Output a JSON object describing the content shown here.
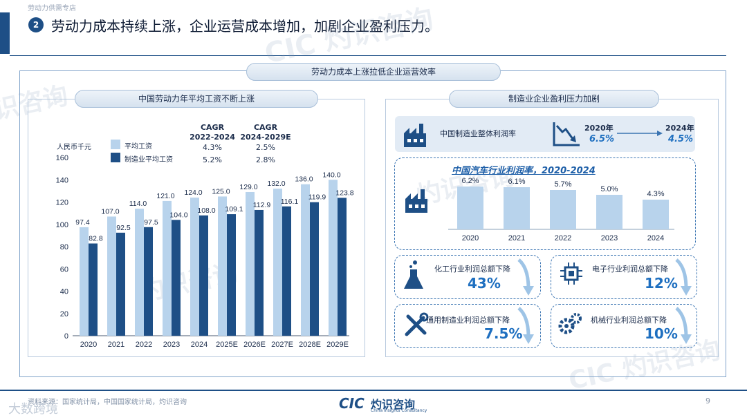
{
  "header": {
    "category": "劳动力供需专店",
    "badge_number": "2",
    "headline": "劳动力成本持续上涨，企业运营成本增加，加剧企业盈利压力。"
  },
  "main_title": "劳动力成本上涨拉低企业运营效率",
  "left": {
    "title": "中国劳动力年平均工资不断上涨",
    "unit": "人民币千元",
    "legend": [
      "平均工资",
      "制造业平均工资"
    ],
    "cagr_headers": [
      "CAGR\n2022-2024",
      "CAGR\n2024-2029E"
    ],
    "cagr_rows": [
      [
        "4.3%",
        "2.5%"
      ],
      [
        "5.2%",
        "2.8%"
      ]
    ]
  },
  "right": {
    "title": "制造业企业盈利压力加剧",
    "profit_card": {
      "label": "中国制造业整体利润率",
      "year_start": "2020年",
      "year_end": "2024年",
      "value_start": "6.5%",
      "value_end": "4.5%"
    },
    "auto_title": "中国汽车行业利润率，2020-2024",
    "industry_cards": [
      {
        "label": "化工行业利润总额下降",
        "value": "43%",
        "icon": "flask-icon"
      },
      {
        "label": "电子行业利润总额下降",
        "value": "12%",
        "icon": "chip-icon"
      },
      {
        "label": "通用制造业利润总额下降",
        "value": "7.5%",
        "icon": "tools-icon"
      },
      {
        "label": "机械行业利润总额下降",
        "value": "10%",
        "icon": "gears-icon"
      }
    ]
  },
  "footer": {
    "source": "资料来源：国家统计局，中国国家统计局，灼识咨询",
    "logo_mark": "CIC",
    "logo_cn": "灼识咨询",
    "logo_en": "China Insights Consultancy",
    "page": "9",
    "watermark": "大数跨境"
  },
  "colors": {
    "dark_blue": "#1e4f86",
    "light_blue": "#b7d4ee",
    "bar_blue": "#b8d3ec",
    "accent": "#1e6fc0"
  },
  "chart_data": [
    {
      "type": "bar",
      "title": "中国劳动力年平均工资不断上涨",
      "ylabel": "人民币千元",
      "categories": [
        "2020",
        "2021",
        "2022",
        "2023",
        "2024",
        "2025E",
        "2026E",
        "2027E",
        "2028E",
        "2029E"
      ],
      "series": [
        {
          "name": "平均工资",
          "values": [
            97.4,
            107.0,
            114.0,
            121.0,
            124.0,
            125.0,
            129.0,
            132.0,
            136.0,
            140.0
          ],
          "labels": [
            "97.4",
            "107.0",
            "114.0",
            "121.0",
            "124.0",
            "125.0",
            "129.0",
            "132.0",
            "136.0",
            "140.0"
          ]
        },
        {
          "name": "制造业平均工资",
          "values": [
            82.8,
            92.5,
            97.5,
            104.0,
            108.0,
            109.1,
            112.9,
            116.1,
            119.9,
            123.8
          ],
          "labels": [
            "82.8",
            "92.5",
            "97.5",
            "104.0",
            "108.0",
            "109.1",
            "112.9",
            "116.1",
            "119.9",
            "123.8"
          ]
        }
      ],
      "ylim": [
        0,
        160
      ],
      "yticks": [
        "0",
        "20",
        "40",
        "60",
        "80",
        "100",
        "120",
        "140",
        "160"
      ],
      "legend": "top-left"
    },
    {
      "type": "bar",
      "title": "中国汽车行业利润率，2020-2024",
      "categories": [
        "2020",
        "2021",
        "2022",
        "2023",
        "2024"
      ],
      "values": [
        6.2,
        6.1,
        5.7,
        5.0,
        4.3
      ],
      "labels": [
        "6.2%",
        "6.1%",
        "5.7%",
        "5.0%",
        "4.3%"
      ]
    }
  ]
}
